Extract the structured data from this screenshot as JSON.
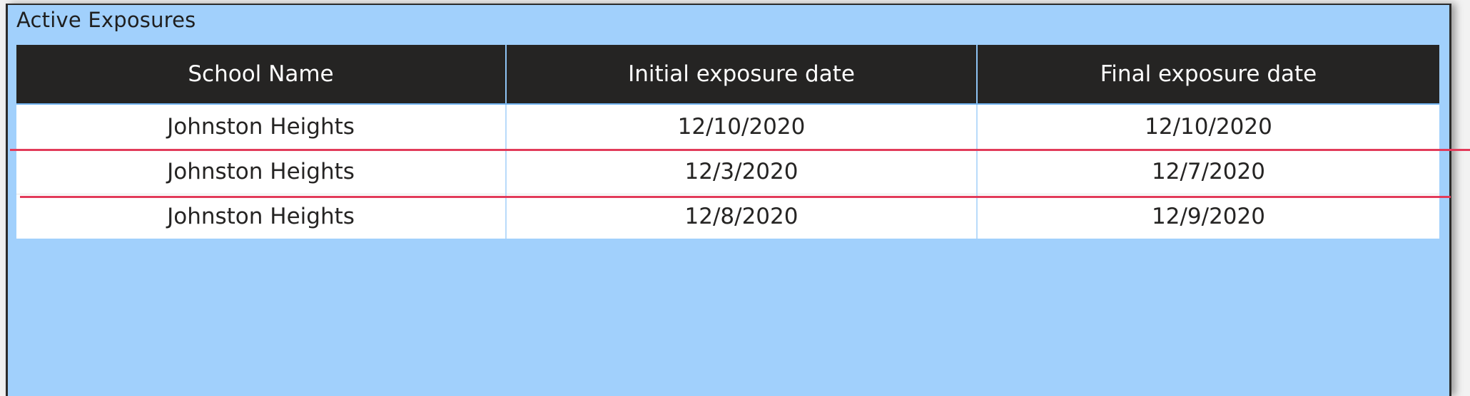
{
  "visual": {
    "title": "Active Exposures"
  },
  "table": {
    "columns": [
      "School Name",
      "Initial exposure date",
      "Final exposure date"
    ],
    "rows": [
      [
        "Johnston Heights",
        "12/10/2020",
        "12/10/2020"
      ],
      [
        "Johnston Heights",
        "12/3/2020",
        "12/7/2020"
      ],
      [
        "Johnston Heights",
        "12/8/2020",
        "12/9/2020"
      ]
    ]
  },
  "colors": {
    "background": "#a1d0fc",
    "header_bg": "#252423",
    "highlight": "#e23b5a"
  }
}
